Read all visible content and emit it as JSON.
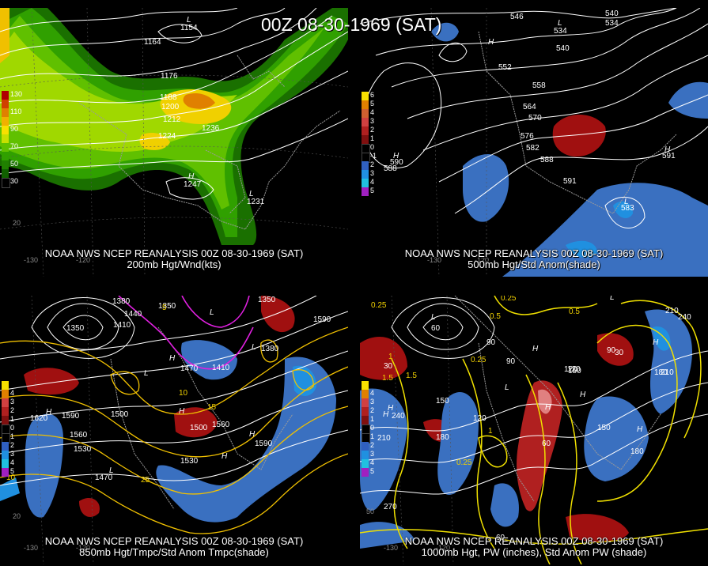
{
  "title": "00Z 08-30-1969 (SAT)",
  "panels": [
    {
      "caption1": "NOAA NWS NCEP REANALYSIS 00Z 08-30-1969 (SAT)",
      "caption2": "200mb Hgt/Wnd(kts)",
      "legend": [
        {
          "label": "130",
          "color": "#b00000"
        },
        {
          "label": "",
          "color": "#d04000"
        },
        {
          "label": "110",
          "color": "#e08000"
        },
        {
          "label": "",
          "color": "#f0b000"
        },
        {
          "label": "90",
          "color": "#f8e000"
        },
        {
          "label": "",
          "color": "#c8e000"
        },
        {
          "label": "70",
          "color": "#60c000"
        },
        {
          "label": "",
          "color": "#30a000"
        },
        {
          "label": "50",
          "color": "#208000"
        },
        {
          "label": "",
          "color": "#106000"
        },
        {
          "label": "30",
          "color": "#000000"
        }
      ],
      "contour_labels": [
        "1164",
        "1176",
        "1188",
        "1200",
        "1212",
        "1224",
        "1236",
        "1154",
        "1247",
        "1231"
      ],
      "pressure_centers": [
        "L",
        "H",
        "L"
      ],
      "grid_labels": [
        "-130",
        "-120",
        "20"
      ]
    },
    {
      "caption1": "NOAA NWS NCEP REANALYSIS 00Z 08-30-1969 (SAT)",
      "caption2": "500mb Hgt/Std Anom(shade)",
      "legend": [
        {
          "label": "6",
          "color": "#f8e000"
        },
        {
          "label": "5",
          "color": "#e08000"
        },
        {
          "label": "4",
          "color": "#d06030"
        },
        {
          "label": "3",
          "color": "#d04040"
        },
        {
          "label": "2",
          "color": "#b02020"
        },
        {
          "label": "1",
          "color": "#801010"
        },
        {
          "label": "0",
          "color": "#000000"
        },
        {
          "label": "-1",
          "color": "#000000"
        },
        {
          "label": "2",
          "color": "#3060c0"
        },
        {
          "label": "3",
          "color": "#2090e0"
        },
        {
          "label": "4",
          "color": "#20c0e0"
        },
        {
          "label": "5",
          "color": "#a020c0"
        }
      ],
      "contour_labels": [
        "546",
        "540",
        "552",
        "558",
        "564",
        "570",
        "576",
        "582",
        "588",
        "534",
        "540",
        "534",
        "591",
        "590",
        "588",
        "591",
        "583"
      ],
      "pressure_centers": [
        "H",
        "L",
        "H",
        "H",
        "L"
      ],
      "grid_labels": [
        "-130",
        "-120"
      ]
    },
    {
      "caption1": "NOAA NWS NCEP REANALYSIS 00Z 08-30-1969 (SAT)",
      "caption2": "850mb Hgt/Tmpc/Std Anom Tmpc(shade)",
      "legend": [
        {
          "label": "",
          "color": "#f8e000"
        },
        {
          "label": "4",
          "color": "#e08000"
        },
        {
          "label": "3",
          "color": "#d04040"
        },
        {
          "label": "2",
          "color": "#b02020"
        },
        {
          "label": "1",
          "color": "#801010"
        },
        {
          "label": "0",
          "color": "#000000"
        },
        {
          "label": "1",
          "color": "#000000"
        },
        {
          "label": "2",
          "color": "#3060c0"
        },
        {
          "label": "3",
          "color": "#2090e0"
        },
        {
          "label": "4",
          "color": "#20c0e0"
        },
        {
          "label": "5",
          "color": "#a020c0"
        }
      ],
      "contour_labels": [
        "1350",
        "1380",
        "1410",
        "1440",
        "1470",
        "1410",
        "1380",
        "1590",
        "1620",
        "1590",
        "1560",
        "1530",
        "1500",
        "1500",
        "1560",
        "1530",
        "1470",
        "1590",
        "1350",
        "1350"
      ],
      "temp_labels": [
        "10",
        "15",
        "25",
        "10",
        "5"
      ],
      "pressure_centers": [
        "L",
        "L",
        "H",
        "H",
        "L",
        "H",
        "H",
        "L",
        "H"
      ],
      "grid_labels": [
        "-130",
        "-120",
        "20"
      ]
    },
    {
      "caption1": "NOAA NWS NCEP REANALYSIS 00Z 08-30-1969 (SAT)",
      "caption2": "1000mb Hgt, PW (inches), Std Anom PW (shade)",
      "legend": [
        {
          "label": "",
          "color": "#f8e000"
        },
        {
          "label": "4",
          "color": "#e08000"
        },
        {
          "label": "3",
          "color": "#d04040"
        },
        {
          "label": "2",
          "color": "#b02020"
        },
        {
          "label": "1",
          "color": "#801010"
        },
        {
          "label": "0",
          "color": "#000000"
        },
        {
          "label": "1",
          "color": "#000000"
        },
        {
          "label": "2",
          "color": "#3060c0"
        },
        {
          "label": "3",
          "color": "#2090e0"
        },
        {
          "label": "4",
          "color": "#20c0e0"
        },
        {
          "label": "5",
          "color": "#a020c0"
        }
      ],
      "contour_labels": [
        "60",
        "30",
        "90",
        "90",
        "120",
        "150",
        "180",
        "210",
        "240",
        "270",
        "120",
        "60",
        "90",
        "30",
        "210",
        "180",
        "150",
        "120",
        "60",
        "210",
        "240",
        "180",
        "150"
      ],
      "pw_labels": [
        "0.25",
        "0.5",
        "1",
        "1.5",
        "0.25",
        "0.25",
        "0.5",
        "0.25",
        "1",
        "1.5"
      ],
      "pressure_centers": [
        "L",
        "L",
        "H",
        "H",
        "H",
        "H",
        "L",
        "H",
        "H",
        "H"
      ],
      "grid_labels": [
        "-130",
        "-120",
        "50"
      ]
    }
  ]
}
